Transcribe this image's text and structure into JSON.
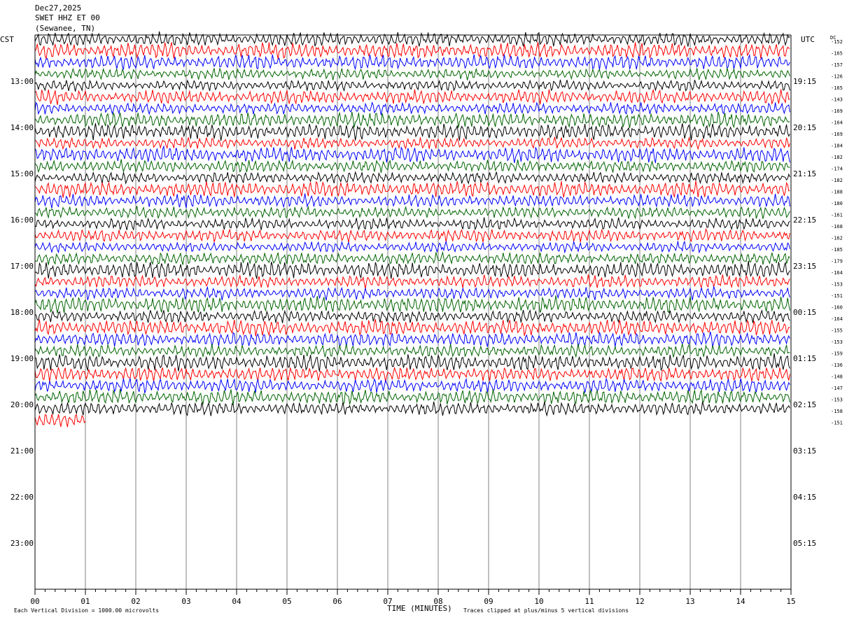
{
  "header": {
    "date": "Dec27,2025",
    "station": "SWET HHZ ET 00",
    "location": "(Sewanee, TN)"
  },
  "labels": {
    "left_tz": "CST",
    "right_tz": "UTC",
    "dc": "DC"
  },
  "footer": {
    "xlabel": "TIME (MINUTES)",
    "scale_note": "Each Vertical Division = 1000.00 microvolts",
    "clip_note": "Traces clipped at plus/minus 5 vertical divisions"
  },
  "colors": {
    "trace_cycle": [
      "#000000",
      "#ff0000",
      "#0000ff",
      "#006400"
    ],
    "grid": "#808080",
    "text": "#000000"
  },
  "chart_data": {
    "type": "helicorder",
    "x_ticks": [
      "00",
      "01",
      "02",
      "03",
      "04",
      "05",
      "06",
      "07",
      "08",
      "09",
      "10",
      "11",
      "12",
      "13",
      "14",
      "15"
    ],
    "xlim": [
      0,
      15
    ],
    "left_hour_labels": [
      "13:00",
      "14:00",
      "15:00",
      "16:00",
      "17:00",
      "18:00",
      "19:00",
      "20:00",
      "21:00",
      "22:00",
      "23:00"
    ],
    "right_hour_labels": [
      "19:15",
      "20:15",
      "21:15",
      "22:15",
      "23:15",
      "00:15",
      "01:15",
      "02:15",
      "03:15",
      "04:15",
      "05:15"
    ],
    "line_minutes": 15,
    "first_hour_row": 4,
    "total_rows": 48,
    "dc_offsets": [
      -152,
      -165,
      -157,
      -126,
      -165,
      -143,
      -169,
      -164,
      -169,
      -184,
      -182,
      -174,
      -182,
      -188,
      -180,
      -161,
      -168,
      -162,
      -185,
      -179,
      -164,
      -153,
      -151,
      -160,
      -164,
      -155,
      -153,
      -159,
      -136,
      -148,
      -147,
      -153,
      -158,
      -151
    ],
    "last_trace_end_minute": 1.0
  }
}
